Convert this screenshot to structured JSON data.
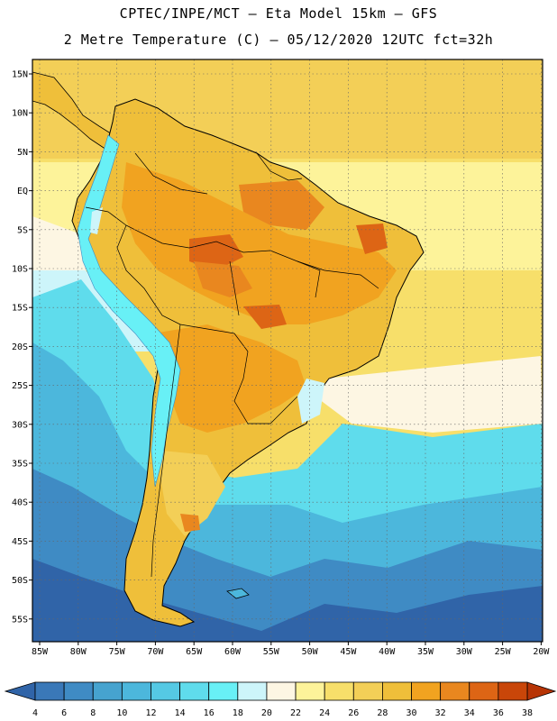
{
  "title_line1": "CPTEC/INPE/MCT –  Eta Model 15km – GFS",
  "title_line2": "2 Metre Temperature (C) – 05/12/2020 12UTC fct=32h",
  "lat_labels": [
    "15N",
    "10N",
    "5N",
    "EQ",
    "5S",
    "10S",
    "15S",
    "20S",
    "25S",
    "30S",
    "35S",
    "40S",
    "45S",
    "50S",
    "55S"
  ],
  "lon_labels": [
    "85W",
    "80W",
    "75W",
    "70W",
    "65W",
    "60W",
    "55W",
    "50W",
    "45W",
    "40W",
    "35W",
    "30W",
    "25W",
    "20W"
  ],
  "colorbar": {
    "ticks": [
      "4",
      "6",
      "8",
      "10",
      "12",
      "14",
      "16",
      "18",
      "20",
      "22",
      "24",
      "26",
      "28",
      "30",
      "32",
      "34",
      "36",
      "38"
    ],
    "colors": [
      "#3a78b8",
      "#3f8bc4",
      "#46a3cf",
      "#4cb7dc",
      "#55c9e4",
      "#5fdcec",
      "#68f0f6",
      "#cdf5fa",
      "#fdf6e3",
      "#fdf39a",
      "#f7df6a",
      "#f3cf57",
      "#efbf3a",
      "#f1a320",
      "#e9871f",
      "#dd6515",
      "#c94609"
    ],
    "low_color": "#3064a8",
    "high_color": "#b73405"
  }
}
